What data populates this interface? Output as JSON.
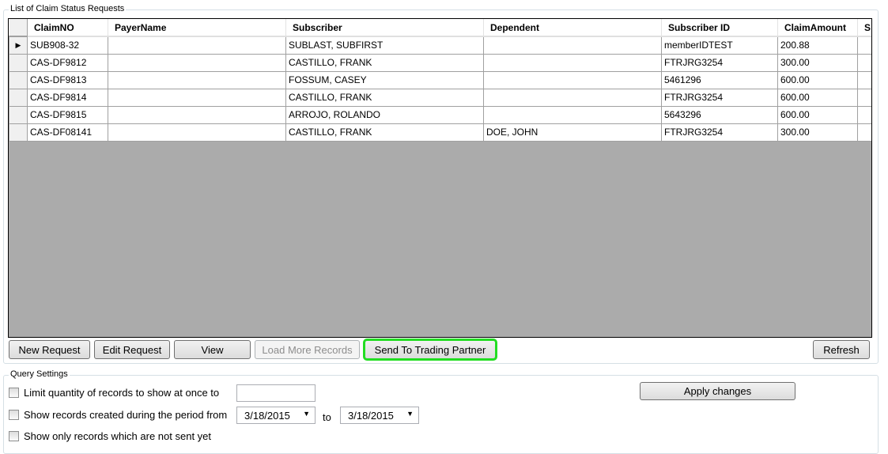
{
  "list_group": {
    "title": "List of Claim Status Requests"
  },
  "grid": {
    "columns": [
      "ClaimNO",
      "PayerName",
      "Subscriber",
      "Dependent",
      "Subscriber ID",
      "ClaimAmount",
      "S"
    ],
    "rows": [
      [
        "SUB908-32",
        "",
        "SUBLAST, SUBFIRST",
        "",
        "memberIDTEST",
        "200.88",
        ""
      ],
      [
        "CAS-DF9812",
        "",
        "CASTILLO, FRANK",
        "",
        "FTRJRG3254",
        "300.00",
        ""
      ],
      [
        "CAS-DF9813",
        "",
        "FOSSUM, CASEY",
        "",
        "5461296",
        "600.00",
        ""
      ],
      [
        "CAS-DF9814",
        "",
        "CASTILLO, FRANK",
        "",
        "FTRJRG3254",
        "600.00",
        ""
      ],
      [
        "CAS-DF9815",
        "",
        "ARROJO, ROLANDO",
        "",
        "5643296",
        "600.00",
        ""
      ],
      [
        "CAS-DF08141",
        "",
        "CASTILLO, FRANK",
        "DOE, JOHN",
        "FTRJRG3254",
        "300.00",
        ""
      ]
    ],
    "current_row_indicator": "▶"
  },
  "buttons": {
    "new": "New Request",
    "edit": "Edit Request",
    "view": "View",
    "load_more": "Load More Records",
    "send": "Send To Trading Partner",
    "refresh": "Refresh",
    "apply": "Apply changes"
  },
  "query": {
    "title": "Query Settings",
    "limit_label": "Limit quantity of records to show at once to",
    "limit_value": "",
    "period_label": "Show records created during the period from",
    "from": "3/18/2015",
    "to_label": "to",
    "to": "3/18/2015",
    "not_sent_label": "Show only records which are not sent yet"
  },
  "colors": {
    "highlight": "#22dd22",
    "grid_background": "#ababab"
  }
}
